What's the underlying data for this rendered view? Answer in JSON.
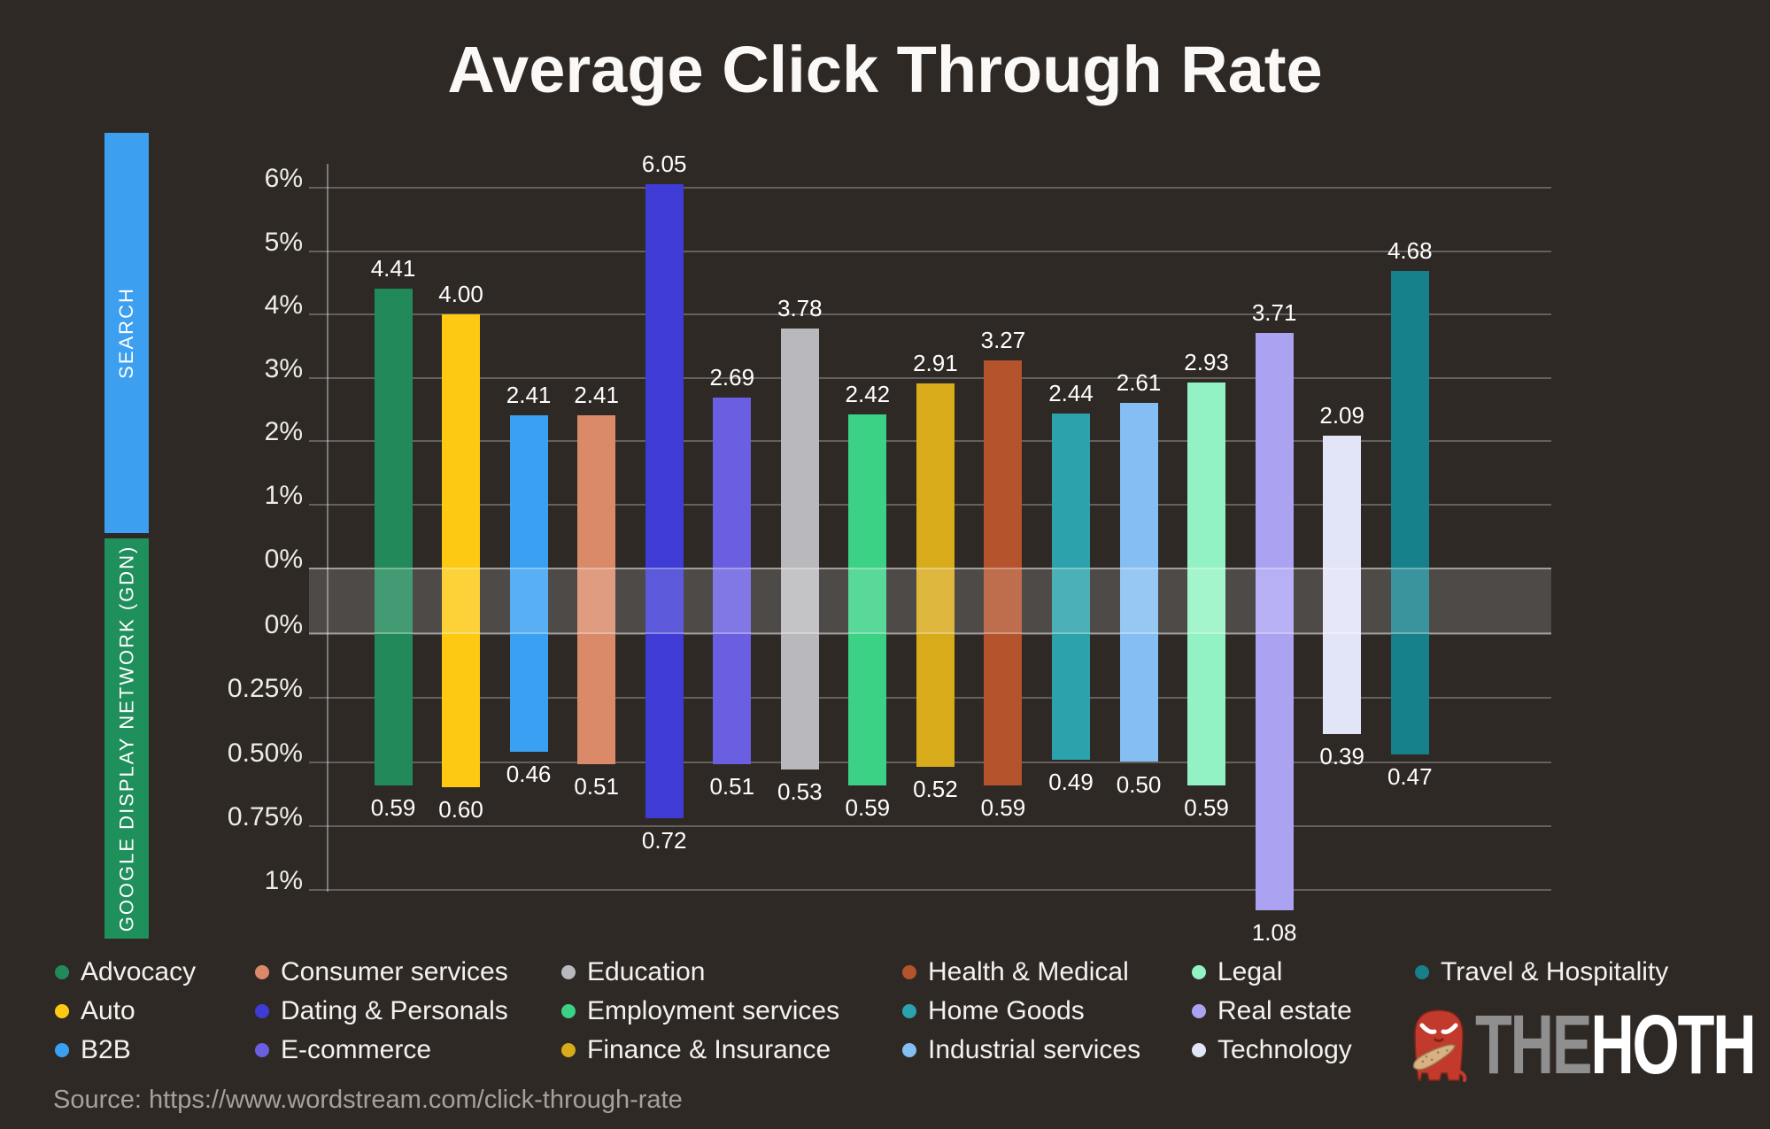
{
  "title": "Average Click Through Rate",
  "side_labels": {
    "search": "SEARCH",
    "gdn": "GOOGLE DISPLAY NETWORK (GDN)"
  },
  "source": "Source: https://www.wordstream.com/click-through-rate",
  "logo": {
    "the": "THE",
    "hoth": "HOTH"
  },
  "colors": {
    "background": "#2E2925",
    "search_band": "#3C9FF0",
    "gdn_band": "#1F8F5B",
    "title_text": "#FBF9F7",
    "axis_text": "#EFECE8",
    "legend_text": "#F4F1EE",
    "source_text": "#A7A19B",
    "mascot_red": "#C13A2B",
    "club_tan": "#D8B183"
  },
  "chart_data": {
    "type": "bar",
    "title": "Average Click Through Rate",
    "orientation": "vertical-diverging",
    "grid": true,
    "legend_position": "bottom",
    "categories": [
      "Advocacy",
      "Auto",
      "B2B",
      "Consumer services",
      "Dating & Personals",
      "E-commerce",
      "Education",
      "Employment services",
      "Finance & Insurance",
      "Health & Medical",
      "Home Goods",
      "Industrial services",
      "Legal",
      "Real estate",
      "Technology",
      "Travel & Hospitality"
    ],
    "bar_colors": [
      "#21895A",
      "#FDC913",
      "#3AA1F2",
      "#DB8A69",
      "#3F3BD5",
      "#6A5FE0",
      "#B9B9BD",
      "#3BD286",
      "#D8AB1B",
      "#B4532C",
      "#2BA2AC",
      "#84BEF2",
      "#93F2C3",
      "#ABA2F2",
      "#E2E4F8",
      "#16808B"
    ],
    "series": [
      {
        "name": "Search",
        "unit": "%",
        "values": [
          4.41,
          4.0,
          2.41,
          2.41,
          6.05,
          2.69,
          3.78,
          2.42,
          2.91,
          3.27,
          2.44,
          2.61,
          2.93,
          3.71,
          2.09,
          4.68
        ]
      },
      {
        "name": "Google Display Network (GDN)",
        "unit": "%",
        "values": [
          0.59,
          0.6,
          0.46,
          0.51,
          0.72,
          0.51,
          0.53,
          0.59,
          0.52,
          0.59,
          0.49,
          0.5,
          0.59,
          1.08,
          0.39,
          0.47
        ]
      }
    ],
    "search_axis": {
      "min": 0,
      "max": 6,
      "ticks": [
        {
          "label": "6%",
          "value": 6
        },
        {
          "label": "5%",
          "value": 5
        },
        {
          "label": "4%",
          "value": 4
        },
        {
          "label": "3%",
          "value": 3
        },
        {
          "label": "2%",
          "value": 2
        },
        {
          "label": "1%",
          "value": 1
        },
        {
          "label": "0%",
          "value": 0
        }
      ]
    },
    "gdn_axis": {
      "min": 0,
      "max": 1,
      "direction": "down",
      "ticks": [
        {
          "label": "0%",
          "value": 0
        },
        {
          "label": "0.25%",
          "value": 0.25
        },
        {
          "label": "0.50%",
          "value": 0.5
        },
        {
          "label": "0.75%",
          "value": 0.75
        },
        {
          "label": "1%",
          "value": 1
        }
      ]
    },
    "legend_columns": [
      [
        0,
        1,
        2
      ],
      [
        3,
        4,
        5
      ],
      [
        6,
        7,
        8
      ],
      [
        9,
        10,
        11
      ],
      [
        12,
        13,
        14
      ],
      [
        15
      ]
    ]
  }
}
